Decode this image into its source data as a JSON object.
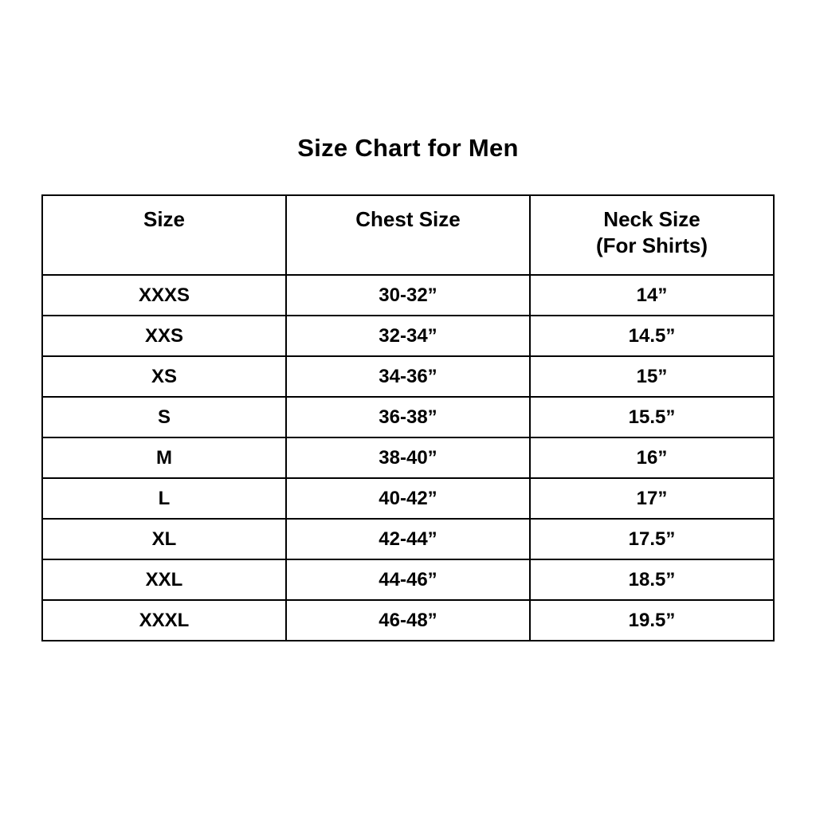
{
  "title": "Size Chart for Men",
  "chart_data": {
    "type": "table",
    "title": "Size Chart for Men",
    "columns": [
      {
        "label": "Size",
        "sublabel": ""
      },
      {
        "label": "Chest Size",
        "sublabel": ""
      },
      {
        "label": "Neck Size",
        "sublabel": "(For Shirts)"
      }
    ],
    "rows": [
      [
        "XXXS",
        "30-32”",
        "14”"
      ],
      [
        "XXS",
        "32-34”",
        "14.5”"
      ],
      [
        "XS",
        "34-36”",
        "15”"
      ],
      [
        "S",
        "36-38”",
        "15.5”"
      ],
      [
        "M",
        "38-40”",
        "16”"
      ],
      [
        "L",
        "40-42”",
        "17”"
      ],
      [
        "XL",
        "42-44”",
        "17.5”"
      ],
      [
        "XXL",
        "44-46”",
        "18.5”"
      ],
      [
        "XXXL",
        "46-48”",
        "19.5”"
      ]
    ],
    "layout": {
      "text_color": "#000000",
      "border_color": "#000000",
      "background_color": "#ffffff",
      "column_count": 3,
      "row_count": 9
    }
  }
}
